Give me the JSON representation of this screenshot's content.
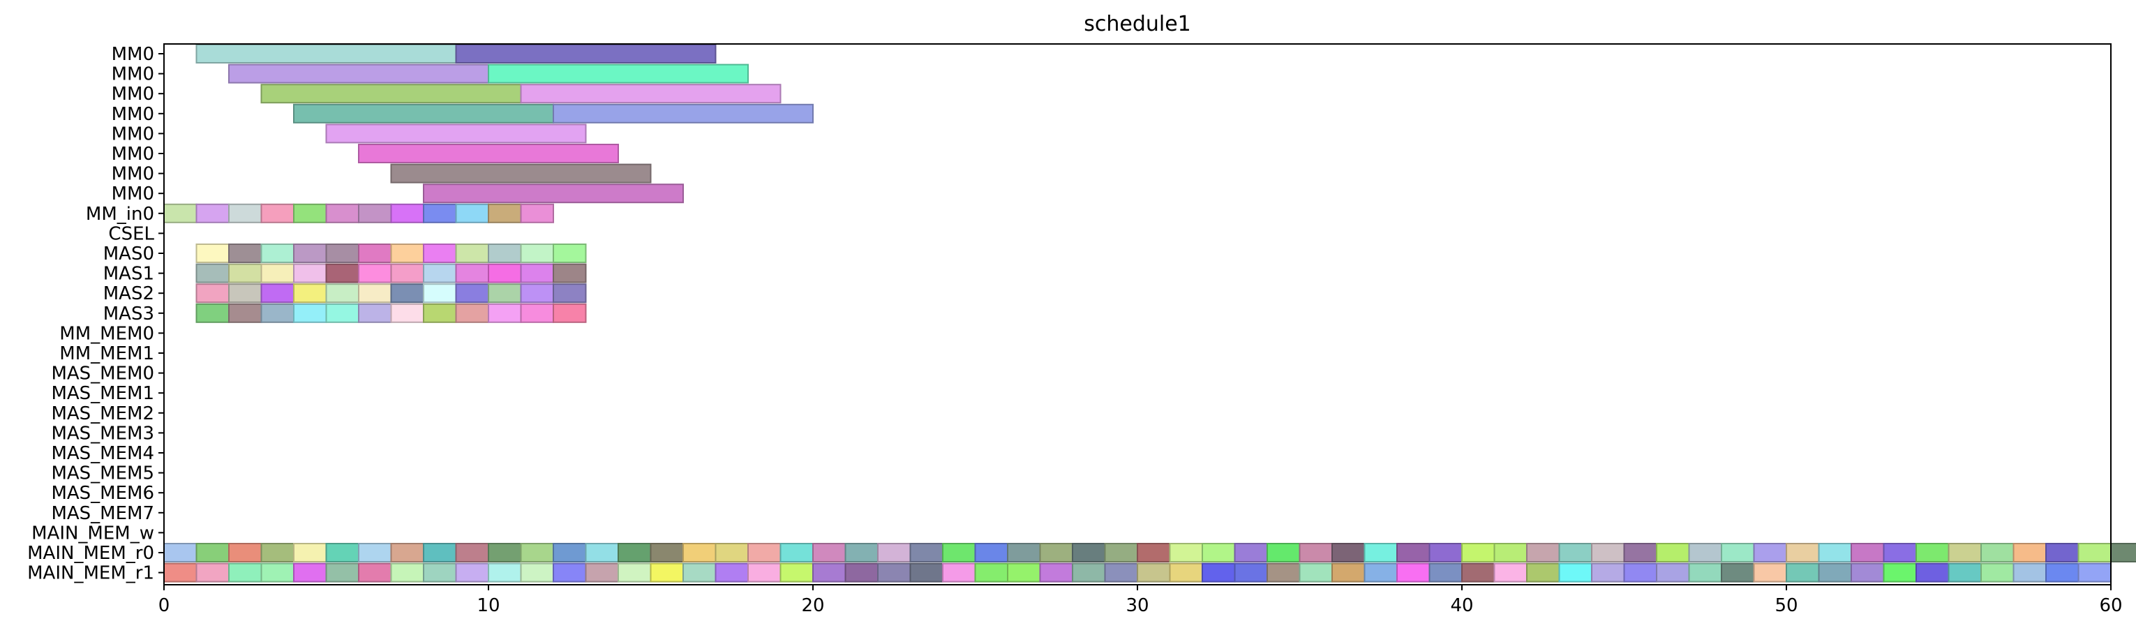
{
  "chart_data": {
    "type": "gantt",
    "title": "schedule1",
    "xlabel": "",
    "ylabel": "",
    "xlim": [
      0,
      60
    ],
    "xticks": [
      0,
      10,
      20,
      30,
      40,
      50,
      60
    ],
    "xtick_labels": [
      "0",
      "10",
      "20",
      "30",
      "40",
      "50",
      "60"
    ],
    "grid": false,
    "rows": [
      "MM0",
      "MM0",
      "MM0",
      "MM0",
      "MM0",
      "MM0",
      "MM0",
      "MM0",
      "MM_in0",
      "CSEL",
      "MAS0",
      "MAS1",
      "MAS2",
      "MAS3",
      "MM_MEM0",
      "MM_MEM1",
      "MAS_MEM0",
      "MAS_MEM1",
      "MAS_MEM2",
      "MAS_MEM3",
      "MAS_MEM4",
      "MAS_MEM5",
      "MAS_MEM6",
      "MAS_MEM7",
      "MAIN_MEM_w",
      "MAIN_MEM_r0",
      "MAIN_MEM_r1"
    ],
    "tasks": [
      {
        "row": 0,
        "start": 1,
        "end": 9,
        "color": "#a9dcd8"
      },
      {
        "row": 0,
        "start": 9,
        "end": 17,
        "color": "#7b70c2"
      },
      {
        "row": 1,
        "start": 2,
        "end": 10,
        "color": "#bb9ee6"
      },
      {
        "row": 1,
        "start": 10,
        "end": 18,
        "color": "#6bf7c4"
      },
      {
        "row": 2,
        "start": 3,
        "end": 11,
        "color": "#a8d17a"
      },
      {
        "row": 2,
        "start": 11,
        "end": 19,
        "color": "#e4a2ee"
      },
      {
        "row": 3,
        "start": 4,
        "end": 12,
        "color": "#77bfae"
      },
      {
        "row": 3,
        "start": 12,
        "end": 20,
        "color": "#98a3e8"
      },
      {
        "row": 4,
        "start": 5,
        "end": 13,
        "color": "#e2a3f2"
      },
      {
        "row": 5,
        "start": 6,
        "end": 14,
        "color": "#e878d8"
      },
      {
        "row": 6,
        "start": 7,
        "end": 15,
        "color": "#9b8b8e"
      },
      {
        "row": 7,
        "start": 8,
        "end": 16,
        "color": "#cd7bc9"
      }
    ],
    "grids": [
      {
        "row": 8,
        "start": 0,
        "colors": [
          "#c9e5ac",
          "#d6a4f0",
          "#cddada",
          "#f59fbd",
          "#94e27c",
          "#d88fce",
          "#c393c6",
          "#d772f7",
          "#7a8cf0",
          "#8ed8f6",
          "#c9ac7a",
          "#ea8fd7"
        ]
      },
      {
        "row": 10,
        "start": 1,
        "colors": [
          "#fdf8c0",
          "#9e8f95",
          "#adf0d3",
          "#bb99c5",
          "#a78ea4",
          "#e07ac3",
          "#fdd09c",
          "#ea7ff2",
          "#cde6a9",
          "#b1cccc",
          "#c2f4c7",
          "#a4f79c"
        ]
      },
      {
        "row": 11,
        "start": 1,
        "colors": [
          "#a6bdb9",
          "#d3e0a3",
          "#f6efb9",
          "#f0c0ea",
          "#a96476",
          "#fd8ddf",
          "#f49ec9",
          "#b7d6ee",
          "#e484e0",
          "#f56de4",
          "#dc82ec",
          "#9d8588"
        ]
      },
      {
        "row": 12,
        "start": 1,
        "colors": [
          "#f1a4c1",
          "#c8c6bb",
          "#c06bf3",
          "#f3f07e",
          "#c8eec5",
          "#f7ecc6",
          "#7b8fb3",
          "#d6fdfd",
          "#8a7ee0",
          "#abd3a8",
          "#bd91f5",
          "#8d82c3"
        ]
      },
      {
        "row": 13,
        "start": 1,
        "colors": [
          "#80d07f",
          "#a68c8f",
          "#9ab6c9",
          "#94eff9",
          "#95f7e2",
          "#bcb3e7",
          "#fddde9",
          "#b8d771",
          "#e4a2a2",
          "#f4a1f4",
          "#f78cde",
          "#f782a9"
        ]
      },
      {
        "row": 25,
        "start": 0,
        "colors": [
          "#a9c6ef",
          "#88cf79",
          "#e98e7a",
          "#a5bd7c",
          "#f5f2b0",
          "#64d3b6",
          "#aed5ef",
          "#d8a790",
          "#5fbfbf",
          "#bd7f8c",
          "#74a071",
          "#a8d68c",
          "#6f9ad2",
          "#93dfe6",
          "#65a16e",
          "#8a876e",
          "#f1cf78",
          "#e0d680",
          "#f1aaa7",
          "#75e1d9",
          "#d089be",
          "#83b1b2",
          "#d3b3d7",
          "#7f88a9",
          "#6ee66d",
          "#6a86e8",
          "#7f9c9c",
          "#9db07f",
          "#687e7e",
          "#95ad82",
          "#b26c6c",
          "#d2f495",
          "#b1f588",
          "#9a7dd8",
          "#64e96c",
          "#ca8aaa",
          "#7c6476",
          "#76f0e0",
          "#9763a9",
          "#8e6bd1",
          "#c4f56d",
          "#b8ed76",
          "#c6a5ad",
          "#8ccfc4",
          "#cec0c5",
          "#9674a2",
          "#b5ee6b",
          "#b4c6cf",
          "#9ce8c7",
          "#aa9fec",
          "#e9cfa1",
          "#93e3e9",
          "#c778c6",
          "#8a6ee4",
          "#7de96e",
          "#cbd191",
          "#9fe0a0",
          "#f6bb89",
          "#7365ce",
          "#b7ef83",
          "#6e8970",
          "#6ee88a"
        ]
      },
      {
        "row": 26,
        "start": 0,
        "colors": [
          "#ef8d86",
          "#f1a5c2",
          "#8ff0bb",
          "#9ff2b4",
          "#e06ff0",
          "#94c0a7",
          "#e37cad",
          "#c6f5b8",
          "#9ed4c0",
          "#c7aef1",
          "#b0f2ec",
          "#cdf4c4",
          "#8785f7",
          "#c6a3ad",
          "#d0f4c1",
          "#f3f662",
          "#a7dac4",
          "#b07ef2",
          "#f9aee1",
          "#c6f76d",
          "#a77bd2",
          "#8e68a0",
          "#8b85b1",
          "#6f768b",
          "#f59be8",
          "#85ed6d",
          "#95f26b",
          "#c27bdc",
          "#8eb8a7",
          "#8b90bb",
          "#c7c58d",
          "#e7d57d",
          "#6262ec",
          "#6a73e4",
          "#a59385",
          "#a1e3bc",
          "#d3a86d",
          "#86b1e6",
          "#f86ff2",
          "#7b90c2",
          "#a26b72",
          "#fbb4e6",
          "#acc86d",
          "#6ef8f8",
          "#b5aae5",
          "#9188f2",
          "#a9a3e4",
          "#93d9bc",
          "#6e8b80",
          "#f8c8a6",
          "#74c8b6",
          "#80a9b9",
          "#a28ad6",
          "#6bf56c",
          "#6e60e1",
          "#67c9c3",
          "#a0e9a2",
          "#a3c3e4",
          "#6b88f0",
          "#93a4f6"
        ]
      }
    ]
  }
}
